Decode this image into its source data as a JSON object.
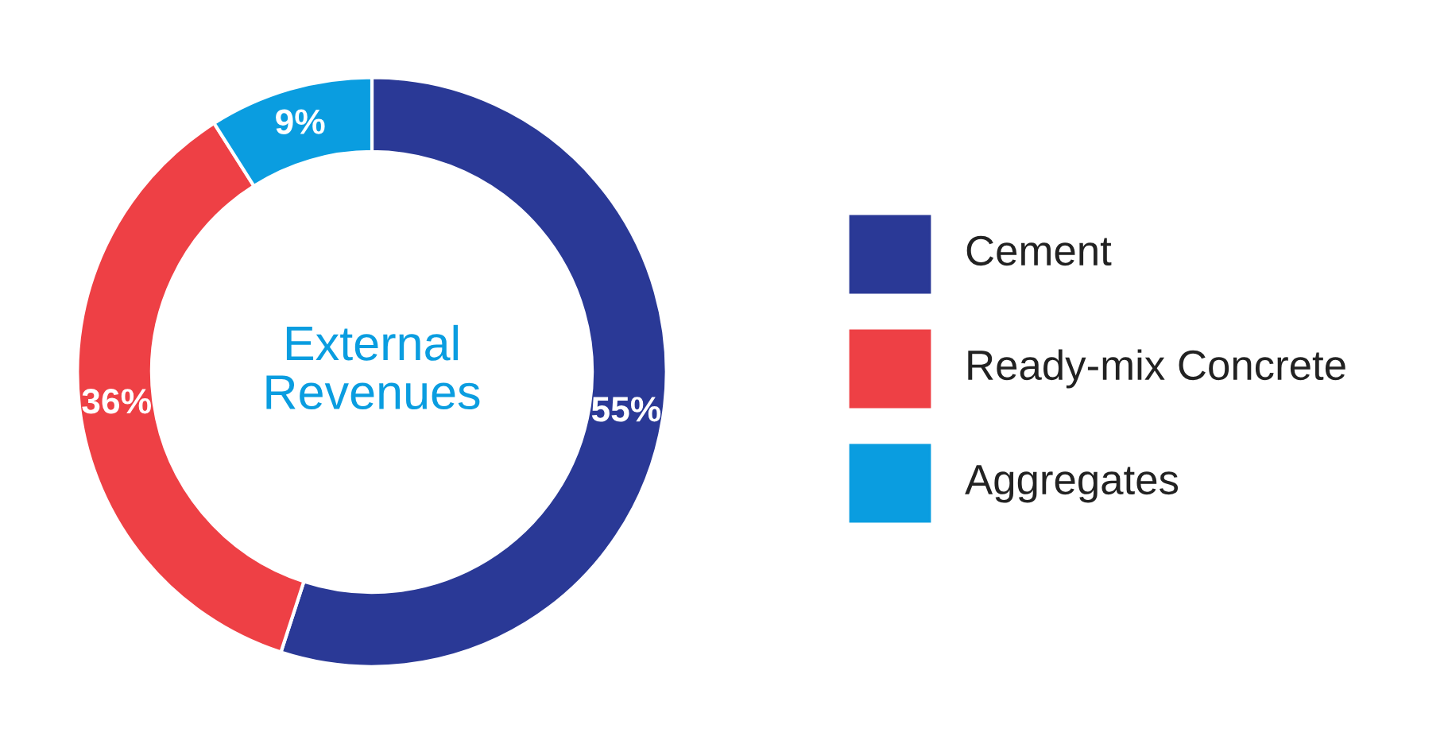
{
  "chart_data": {
    "type": "donut",
    "title": "External\nRevenues",
    "categories": [
      "Cement",
      "Ready-mix Concrete",
      "Aggregates"
    ],
    "values": [
      55,
      36,
      9
    ],
    "colors": [
      "#2a3996",
      "#ee4045",
      "#0a9de0"
    ],
    "value_labels": [
      "55%",
      "36%",
      "9%"
    ],
    "legend": "right"
  }
}
